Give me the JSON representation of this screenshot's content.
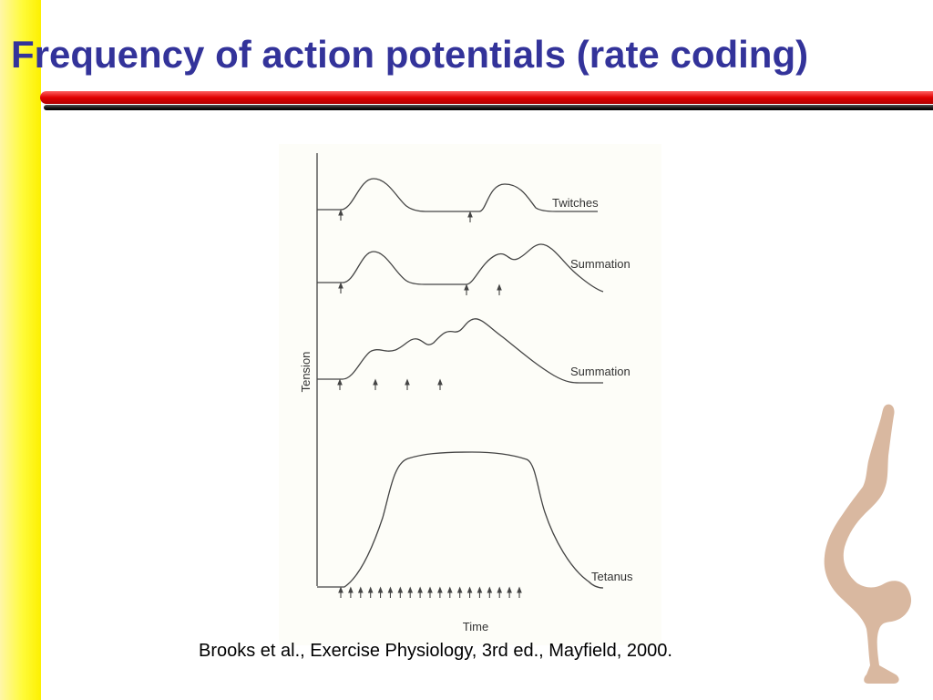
{
  "slide": {
    "title": "Frequency of action potentials (rate coding)",
    "citation": "Brooks et al., Exercise Physiology, 3rd ed., Mayfield, 2000.",
    "accent_bar_color": "#fdf000",
    "title_color": "#33339a",
    "rule_color": "#e00000"
  },
  "figure": {
    "y_axis_label": "Tension",
    "x_axis_label": "Time",
    "traces": [
      {
        "label": "Twitches",
        "stimuli": 2
      },
      {
        "label": "Summation",
        "stimuli": 3
      },
      {
        "label": "Summation",
        "stimuli": 4
      },
      {
        "label": "Tetanus",
        "stimuli": 19
      }
    ]
  },
  "decoration": {
    "icon": "handstand-figure-icon"
  }
}
